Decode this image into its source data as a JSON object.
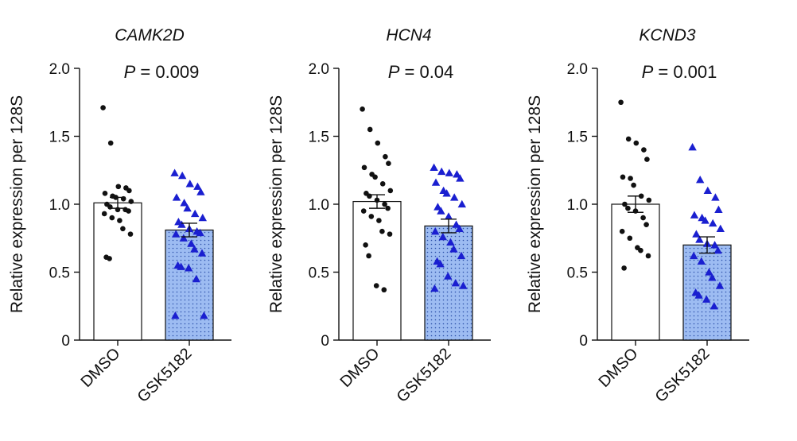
{
  "chart_data": [
    {
      "type": "bar",
      "title": "CAMK2D",
      "annotation": {
        "italic": "P",
        "rest": " = 0.009"
      },
      "ylabel": "Relative expression per 128S",
      "xlabel": "",
      "ylim": [
        0,
        2.0
      ],
      "yticks": [
        0,
        0.5,
        1.0,
        1.5,
        2.0
      ],
      "ytick_labels": [
        "0",
        "0.5",
        "1.0",
        "1.5",
        "2.0"
      ],
      "categories": [
        "DMSO",
        "GSK5182"
      ],
      "values": [
        1.01,
        0.81
      ],
      "sem": [
        0.04,
        0.05
      ],
      "points": [
        [
          1.71,
          1.45,
          1.13,
          1.12,
          1.1,
          1.08,
          1.06,
          1.05,
          1.04,
          1.02,
          1.0,
          0.98,
          0.96,
          0.96,
          0.95,
          0.93,
          0.9,
          0.88,
          0.82,
          0.78,
          0.61,
          0.6
        ],
        [
          1.23,
          1.21,
          1.15,
          1.13,
          1.09,
          1.05,
          1.01,
          0.97,
          0.93,
          0.9,
          0.87,
          0.85,
          0.82,
          0.8,
          0.79,
          0.78,
          0.75,
          0.71,
          0.67,
          0.64,
          0.55,
          0.54,
          0.53,
          0.45,
          0.18,
          0.18
        ]
      ]
    },
    {
      "type": "bar",
      "title": "HCN4",
      "annotation": {
        "italic": "P",
        "rest": " = 0.04"
      },
      "ylabel": "Relative expression per 128S",
      "xlabel": "",
      "ylim": [
        0,
        2.0
      ],
      "yticks": [
        0,
        0.5,
        1.0,
        1.5,
        2.0
      ],
      "ytick_labels": [
        "0",
        "0.5",
        "1.0",
        "1.5",
        "2.0"
      ],
      "categories": [
        "DMSO",
        "GSK5182"
      ],
      "values": [
        1.02,
        0.84
      ],
      "sem": [
        0.05,
        0.05
      ],
      "points": [
        [
          1.7,
          1.55,
          1.45,
          1.35,
          1.3,
          1.27,
          1.22,
          1.2,
          1.15,
          1.1,
          1.08,
          1.06,
          1.03,
          1.0,
          0.97,
          0.95,
          0.91,
          0.88,
          0.8,
          0.78,
          0.7,
          0.62,
          0.4,
          0.37
        ],
        [
          1.27,
          1.24,
          1.23,
          1.22,
          1.19,
          1.16,
          1.1,
          1.08,
          1.05,
          1.0,
          0.98,
          0.95,
          0.91,
          0.85,
          0.82,
          0.8,
          0.76,
          0.72,
          0.67,
          0.62,
          0.58,
          0.56,
          0.47,
          0.42,
          0.4,
          0.38
        ]
      ]
    },
    {
      "type": "bar",
      "title": "KCND3",
      "annotation": {
        "italic": "P",
        "rest": " = 0.001"
      },
      "ylabel": "Relative expression per 128S",
      "xlabel": "",
      "ylim": [
        0,
        2.0
      ],
      "yticks": [
        0,
        0.5,
        1.0,
        1.5,
        2.0
      ],
      "ytick_labels": [
        "0",
        "0.5",
        "1.0",
        "1.5",
        "2.0"
      ],
      "categories": [
        "DMSO",
        "GSK5182"
      ],
      "values": [
        1.0,
        0.7
      ],
      "sem": [
        0.06,
        0.06
      ],
      "points": [
        [
          1.75,
          1.48,
          1.45,
          1.4,
          1.33,
          1.2,
          1.19,
          1.14,
          1.06,
          1.03,
          1.0,
          0.97,
          0.95,
          0.9,
          0.85,
          0.8,
          0.75,
          0.68,
          0.66,
          0.62,
          0.53
        ],
        [
          1.42,
          1.18,
          1.1,
          1.05,
          0.96,
          0.92,
          0.9,
          0.88,
          0.86,
          0.82,
          0.78,
          0.74,
          0.71,
          0.7,
          0.66,
          0.62,
          0.58,
          0.5,
          0.46,
          0.4,
          0.35,
          0.33,
          0.3,
          0.25
        ]
      ]
    }
  ],
  "colors": {
    "axis": "#111111",
    "dmso_fill": "#ffffff",
    "gsk_fill": "#9dbcf2",
    "gsk_dots": "#2a4fa8",
    "dmso_point": "#111111",
    "gsk_point": "#1a1fd0"
  },
  "markers": {
    "dmso": "circle",
    "gsk": "triangle"
  }
}
